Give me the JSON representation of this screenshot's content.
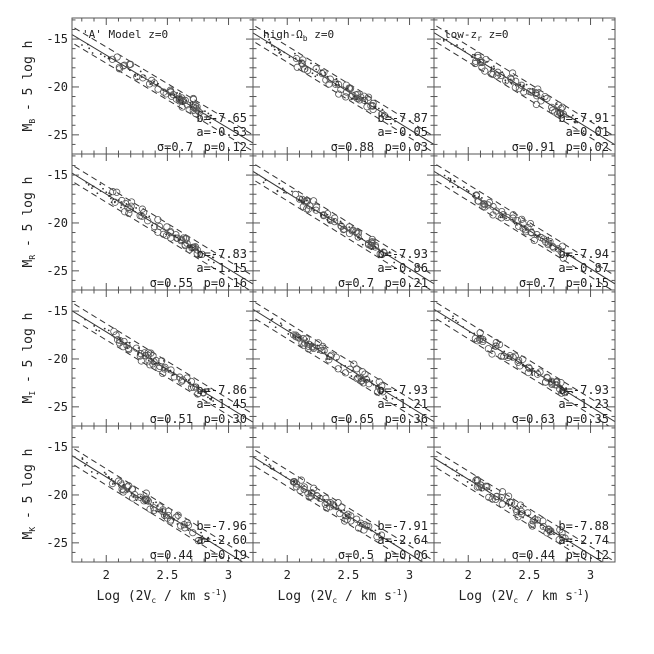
{
  "chart_data": {
    "type": "scatter",
    "layout": "4x3 grid",
    "xlabel": "Log (2V",
    "xlabel_sub": "c",
    "xlabel_tail": " / km s",
    "xlabel_sup": "-1",
    "xlabel_end": ")",
    "x_ticks": [
      "2",
      "2.5",
      "3"
    ],
    "y_ticks": [
      "-25",
      "-20",
      "-15"
    ],
    "xlim": [
      1.72,
      3.2
    ],
    "ylim": [
      -12.8,
      -27
    ],
    "columns": [
      {
        "label_main": "'A' Model  z=0",
        "label_sub": "",
        "label_tail": ""
      },
      {
        "label_main": "high-Ω",
        "label_sub": "b",
        "label_tail": "  z=0"
      },
      {
        "label_main": "low-z",
        "label_sub": "r",
        "label_tail": "  z=0"
      }
    ],
    "rows": [
      {
        "ylabel_main": "M",
        "ylabel_sub": "B",
        "ylabel_tail": " - 5 log h",
        "panels": [
          {
            "b": "b=-7.65",
            "a": "a=-0.53",
            "sigma": "σ=0.7",
            "p": "p=0.12",
            "slope": -7.65,
            "intercept": 0.0
          },
          {
            "b": "b=-7.87",
            "a": "a=-0.05",
            "sigma": "σ=0.88",
            "p": "p=0.03",
            "slope": -7.87,
            "intercept": 0.0
          },
          {
            "b": "b=-7.91",
            "a": "a=0.01",
            "sigma": "σ=0.91",
            "p": "p=0.02",
            "slope": -7.91,
            "intercept": 0.0
          }
        ]
      },
      {
        "ylabel_main": "M",
        "ylabel_sub": "R",
        "ylabel_tail": " - 5 log h",
        "panels": [
          {
            "b": "b=-7.83",
            "a": "a=-1.15",
            "sigma": "σ=0.55",
            "p": "p=0.16",
            "slope": -7.83,
            "intercept": -0.4
          },
          {
            "b": "b=-7.93",
            "a": "a=-0.86",
            "sigma": "σ=0.7",
            "p": "p=0.21",
            "slope": -7.93,
            "intercept": -0.3
          },
          {
            "b": "b=-7.94",
            "a": "a=-0.87",
            "sigma": "σ=0.7",
            "p": "p=0.15",
            "slope": -7.94,
            "intercept": -0.3
          }
        ]
      },
      {
        "ylabel_main": "M",
        "ylabel_sub": "I",
        "ylabel_tail": " - 5 log h",
        "panels": [
          {
            "b": "b=-7.86",
            "a": "a=-1.45",
            "sigma": "σ=0.51",
            "p": "p=0.30",
            "slope": -7.86,
            "intercept": -0.6
          },
          {
            "b": "b=-7.93",
            "a": "a=-1.21",
            "sigma": "σ=0.65",
            "p": "p=0.36",
            "slope": -7.93,
            "intercept": -0.5
          },
          {
            "b": "b=-7.93",
            "a": "a=-1.23",
            "sigma": "σ=0.63",
            "p": "p=0.35",
            "slope": -7.93,
            "intercept": -0.5
          }
        ]
      },
      {
        "ylabel_main": "M",
        "ylabel_sub": "K",
        "ylabel_tail": " - 5 log h",
        "panels": [
          {
            "b": "b=-7.96",
            "a": "a=-2.60",
            "sigma": "σ=0.44",
            "p": "p=0.19",
            "slope": -7.96,
            "intercept": -1.6
          },
          {
            "b": "b=-7.91",
            "a": "a=-2.64",
            "sigma": "σ=0.5",
            "p": "p=0.06",
            "slope": -7.91,
            "intercept": -1.7
          },
          {
            "b": "b=-7.88",
            "a": "a=-2.74",
            "sigma": "σ=0.44",
            "p": "p=0.12",
            "slope": -7.88,
            "intercept": -1.8
          }
        ]
      }
    ]
  }
}
